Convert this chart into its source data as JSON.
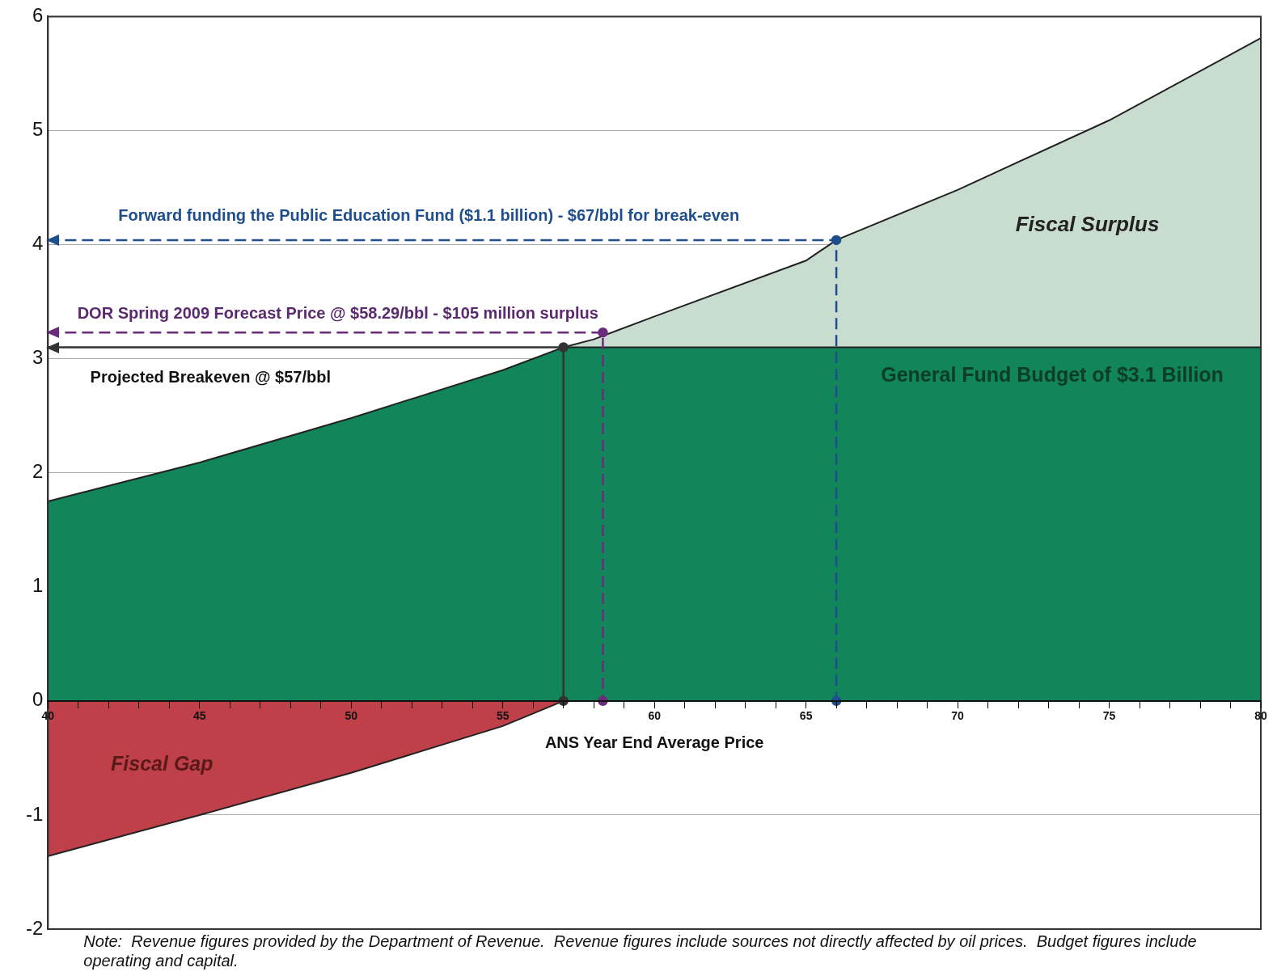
{
  "chart_data": {
    "type": "area",
    "xlabel": "ANS Year End Average Price",
    "xlim": [
      40,
      80
    ],
    "xticks": [
      40,
      {
        "value": 41,
        "label": null
      },
      {
        "value": 42,
        "label": null
      },
      {
        "value": 43,
        "label": null
      },
      {
        "value": 44,
        "label": null
      },
      45,
      {
        "value": 46,
        "label": null
      },
      {
        "value": 47,
        "label": null
      },
      {
        "value": 48,
        "label": null
      },
      {
        "value": 49,
        "label": null
      },
      50,
      {
        "value": 51,
        "label": null
      },
      {
        "value": 52,
        "label": null
      },
      {
        "value": 53,
        "label": null
      },
      {
        "value": 54,
        "label": null
      },
      55,
      {
        "value": 56,
        "label": null
      },
      {
        "value": 57,
        "label": null
      },
      {
        "value": 58,
        "label": null
      },
      {
        "value": 59,
        "label": null
      },
      60,
      {
        "value": 61,
        "label": null
      },
      {
        "value": 62,
        "label": null
      },
      {
        "value": 63,
        "label": null
      },
      {
        "value": 64,
        "label": null
      },
      65,
      {
        "value": 66,
        "label": null
      },
      {
        "value": 67,
        "label": null
      },
      {
        "value": 68,
        "label": null
      },
      {
        "value": 69,
        "label": null
      },
      70,
      {
        "value": 71,
        "label": null
      },
      {
        "value": 72,
        "label": null
      },
      {
        "value": 73,
        "label": null
      },
      {
        "value": 74,
        "label": null
      },
      75,
      {
        "value": 76,
        "label": null
      },
      {
        "value": 77,
        "label": null
      },
      {
        "value": 78,
        "label": null
      },
      {
        "value": 79,
        "label": null
      },
      80
    ],
    "ylim": [
      -2,
      6
    ],
    "yticks": [
      -2,
      -1,
      0,
      1,
      2,
      3,
      4,
      5,
      6
    ],
    "grid": "y",
    "legend": false,
    "series": [
      {
        "color": "#12855a",
        "x": [
          40,
          45,
          50,
          55,
          57,
          58,
          60,
          65,
          66,
          70,
          75,
          80
        ],
        "values": [
          1.75,
          2.09,
          2.48,
          2.9,
          3.1,
          3.1,
          3.1,
          3.1,
          3.1,
          3.1,
          3.1,
          3.1
        ]
      },
      {
        "color": "#c8ddd0",
        "x": [
          57,
          58,
          60,
          65,
          66,
          70,
          75,
          80
        ],
        "values": [
          3.1,
          3.17,
          3.37,
          3.86,
          4.04,
          4.48,
          5.09,
          5.81
        ]
      },
      {
        "color": "#c0404a",
        "x": [
          40,
          45,
          50,
          55,
          57
        ],
        "values": [
          -1.36,
          -1.0,
          -0.63,
          -0.22,
          0
        ]
      },
      {
        "type": "line",
        "color": "#1f4e8c",
        "line_style": "dashed",
        "marker": "circle",
        "x": [
          40,
          66,
          66
        ],
        "values": [
          4.04,
          4.04,
          0
        ]
      },
      {
        "type": "line",
        "color": "#6a2c7a",
        "line_style": "dashed",
        "marker": "circle",
        "x": [
          40,
          58.3,
          58.3
        ],
        "values": [
          3.23,
          3.23,
          0
        ]
      },
      {
        "type": "line",
        "color": "#333333",
        "line_style": "solid",
        "marker": "circle",
        "x": [
          40,
          57,
          57
        ],
        "values": [
          3.1,
          3.1,
          0
        ]
      }
    ],
    "annotations": [
      "Forward funding the Public Education Fund ($1.1 billion) - $67/bbl for break-even",
      "DOR Spring 2009 Forecast Price @ $58.29/bbl - $105 million surplus",
      "Projected Breakeven @ $57/bbl",
      "Fiscal Surplus",
      "General Fund Budget of $3.1 Billion",
      "Fiscal Gap",
      "Note:  Revenue figures provided by the Department of Revenue.  Revenue figures include sources not directly affected by oil prices.  Budget figures include operating and capital."
    ]
  }
}
